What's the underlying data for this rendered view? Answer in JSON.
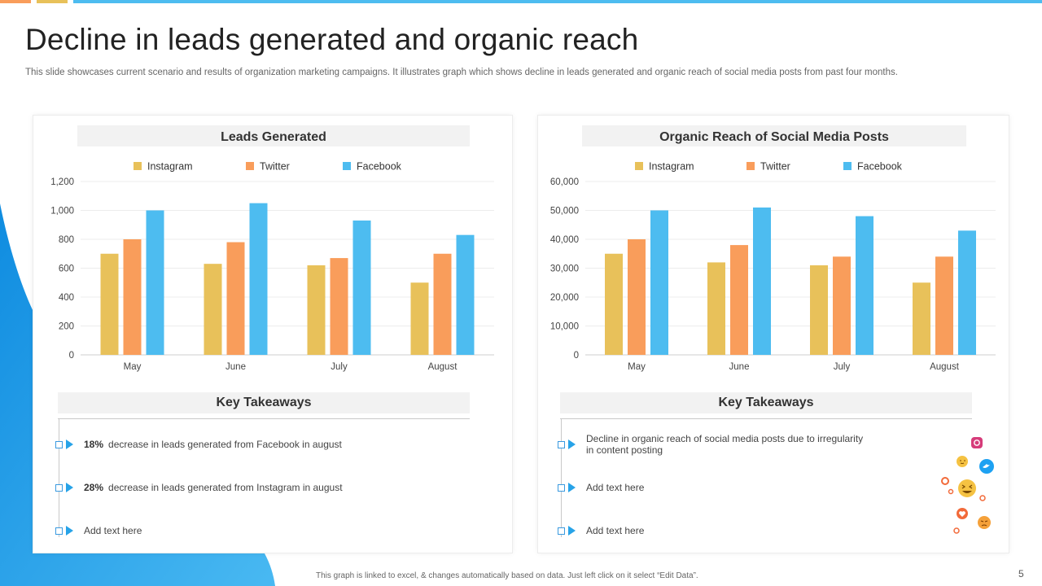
{
  "title": "Decline in leads generated and organic reach",
  "subtitle": "This slide showcases current scenario and results of organization marketing campaigns. It illustrates graph which shows decline in leads generated and organic reach of social media posts from past four months.",
  "footer": "This graph is linked to excel, & changes automatically based on data. Just left click on it select “Edit Data”.",
  "page_number": "5",
  "colors": {
    "instagram": "#E8C15A",
    "twitter": "#F99D5B",
    "facebook": "#4DBCF0",
    "accent": "#1E9BE3"
  },
  "chart_data": [
    {
      "type": "bar",
      "title": "Leads Generated",
      "categories": [
        "May",
        "June",
        "July",
        "August"
      ],
      "series": [
        {
          "name": "Instagram",
          "values": [
            700,
            630,
            620,
            500
          ]
        },
        {
          "name": "Twitter",
          "values": [
            800,
            780,
            670,
            700
          ]
        },
        {
          "name": "Facebook",
          "values": [
            1000,
            1050,
            930,
            830
          ]
        }
      ],
      "ylim": [
        0,
        1200
      ],
      "yticks": [
        "0",
        "200",
        "400",
        "600",
        "800",
        "1,000",
        "1,200"
      ],
      "legend": "top",
      "grid": true
    },
    {
      "type": "bar",
      "title": "Organic Reach of Social Media Posts",
      "categories": [
        "May",
        "June",
        "July",
        "August"
      ],
      "series": [
        {
          "name": "Instagram",
          "values": [
            35000,
            32000,
            31000,
            25000
          ]
        },
        {
          "name": "Twitter",
          "values": [
            40000,
            38000,
            34000,
            34000
          ]
        },
        {
          "name": "Facebook",
          "values": [
            50000,
            51000,
            48000,
            43000
          ]
        }
      ],
      "ylim": [
        0,
        60000
      ],
      "yticks": [
        "0",
        "10,000",
        "20,000",
        "30,000",
        "40,000",
        "50,000",
        "60,000"
      ],
      "legend": "top",
      "grid": true
    }
  ],
  "takeaways_left": {
    "header": "Key Takeaways",
    "items": [
      {
        "bold": "18%",
        "text": "decrease in leads generated from Facebook in august"
      },
      {
        "bold": "28%",
        "text": "decrease in leads generated from Instagram in august"
      },
      {
        "bold": "",
        "text": "Add text here"
      }
    ]
  },
  "takeaways_right": {
    "header": "Key Takeaways",
    "items": [
      {
        "text": "Decline in organic reach of social media posts due to irregularity in content posting"
      },
      {
        "text": "Add text here"
      },
      {
        "text": "Add text here"
      }
    ]
  }
}
